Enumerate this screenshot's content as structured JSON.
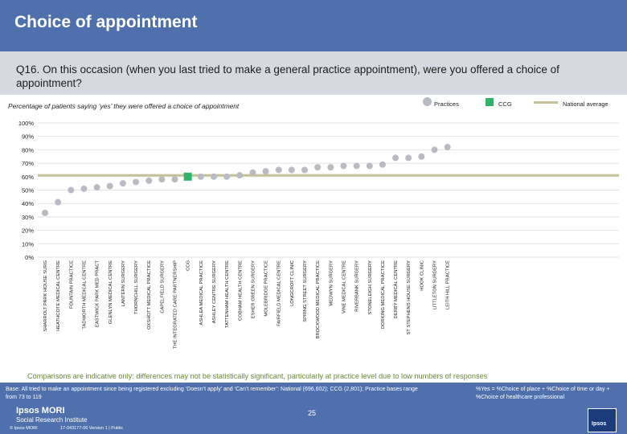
{
  "header": {
    "title": "Choice of appointment",
    "question": "Q16. On this occasion (when you last tried to make a general practice appointment), were you offered a choice of appointment?"
  },
  "subtitle": "Percentage of patients saying ‘yes’ they were offered a choice of appointment",
  "legend": {
    "practices": "Practices",
    "ccg": "CCG",
    "national": "National average"
  },
  "colors": {
    "title_bar": "#4f6fad",
    "question_bar": "#d6d9df",
    "practice_point": "#b8bcc2",
    "ccg_point": "#2fb36b",
    "national_line": "#c7c19a",
    "caveat_text": "#6b8a36"
  },
  "chart_data": {
    "type": "scatter",
    "ylim": [
      0,
      100
    ],
    "yticks": [
      "0%",
      "10%",
      "20%",
      "30%",
      "40%",
      "50%",
      "60%",
      "70%",
      "80%",
      "90%",
      "100%"
    ],
    "national_average": 61,
    "categories": [
      "SHARROLT PARK HOUSE SURG",
      "HEATHCOTE MEDICAL CENTRE",
      "FOUNTAIN PRACTICE",
      "TADWORTH MEDICAL CENTRE",
      "EASTWICK PARK MED PRACT",
      "GLENLYN MEDICAL CENTRE",
      "LANTERN SURGERY",
      "THORNCHILL SURGERY",
      "OXSHOTT MEDICAL PRACTICE",
      "CAPELFIELD SURGERY",
      "THE INTEGRATED CARE PARTNERSHIP",
      "CCG",
      "ASHLEA MEDICAL PRACTICE",
      "ASHLEY CENTRE SURGERY",
      "TATTENHAM HEALTH CENTRE",
      "COBHAM HEALTH CENTRE",
      "ESHER GREEN SURGERY",
      "MOLEBRIDGE PRACTICE",
      "FAIRFIELD MEDICAL CENTRE",
      "LONGCROFT CLINIC",
      "SPRING STREET SURGERY",
      "BROCKWOOD MEDICAL PRACTICE",
      "MEDWYN SURGERY",
      "VINE MEDICAL CENTRE",
      "RIVERBANK SURGERY",
      "STONELEIGH SURGERY",
      "DORKING MEDICAL PRACTICE",
      "DERBY MEDICAL CENTRE",
      "ST STEPHENS HOUSE SURGERY",
      "HOOK CLINIC",
      "LITTLETON SURGERY",
      "LEITH HILL PRACTICE"
    ],
    "values": [
      33,
      41,
      50,
      51,
      52,
      53,
      55,
      56,
      57,
      58,
      58,
      60,
      60,
      60,
      60,
      61,
      63,
      64,
      65,
      65,
      65,
      67,
      67,
      68,
      68,
      68,
      69,
      74,
      74,
      75,
      80,
      82
    ],
    "highlight_index": 11,
    "xlabel": "",
    "ylabel": ""
  },
  "caveat": "Comparisons are indicative only: differences may not be statistically significant, particularly at practice level due to low numbers of responses",
  "footer": {
    "base": "Base: All tried to make an appointment since being registered excluding ‘Doesn’t apply’ and ‘Can’t remember’: National (696,602); CCG (2,801); Practice bases range from 73 to 119",
    "yes_definition": "%Yes = %Choice of place + %Choice of time or day + %Choice of healthcare professional",
    "logo": "Ipsos MORI",
    "logo_sub": "Social Research Institute",
    "copyright": "© Ipsos MORI",
    "version": "17-043177-06 Version 1 | Public",
    "page_number": "25",
    "brand": "Ipsos"
  }
}
